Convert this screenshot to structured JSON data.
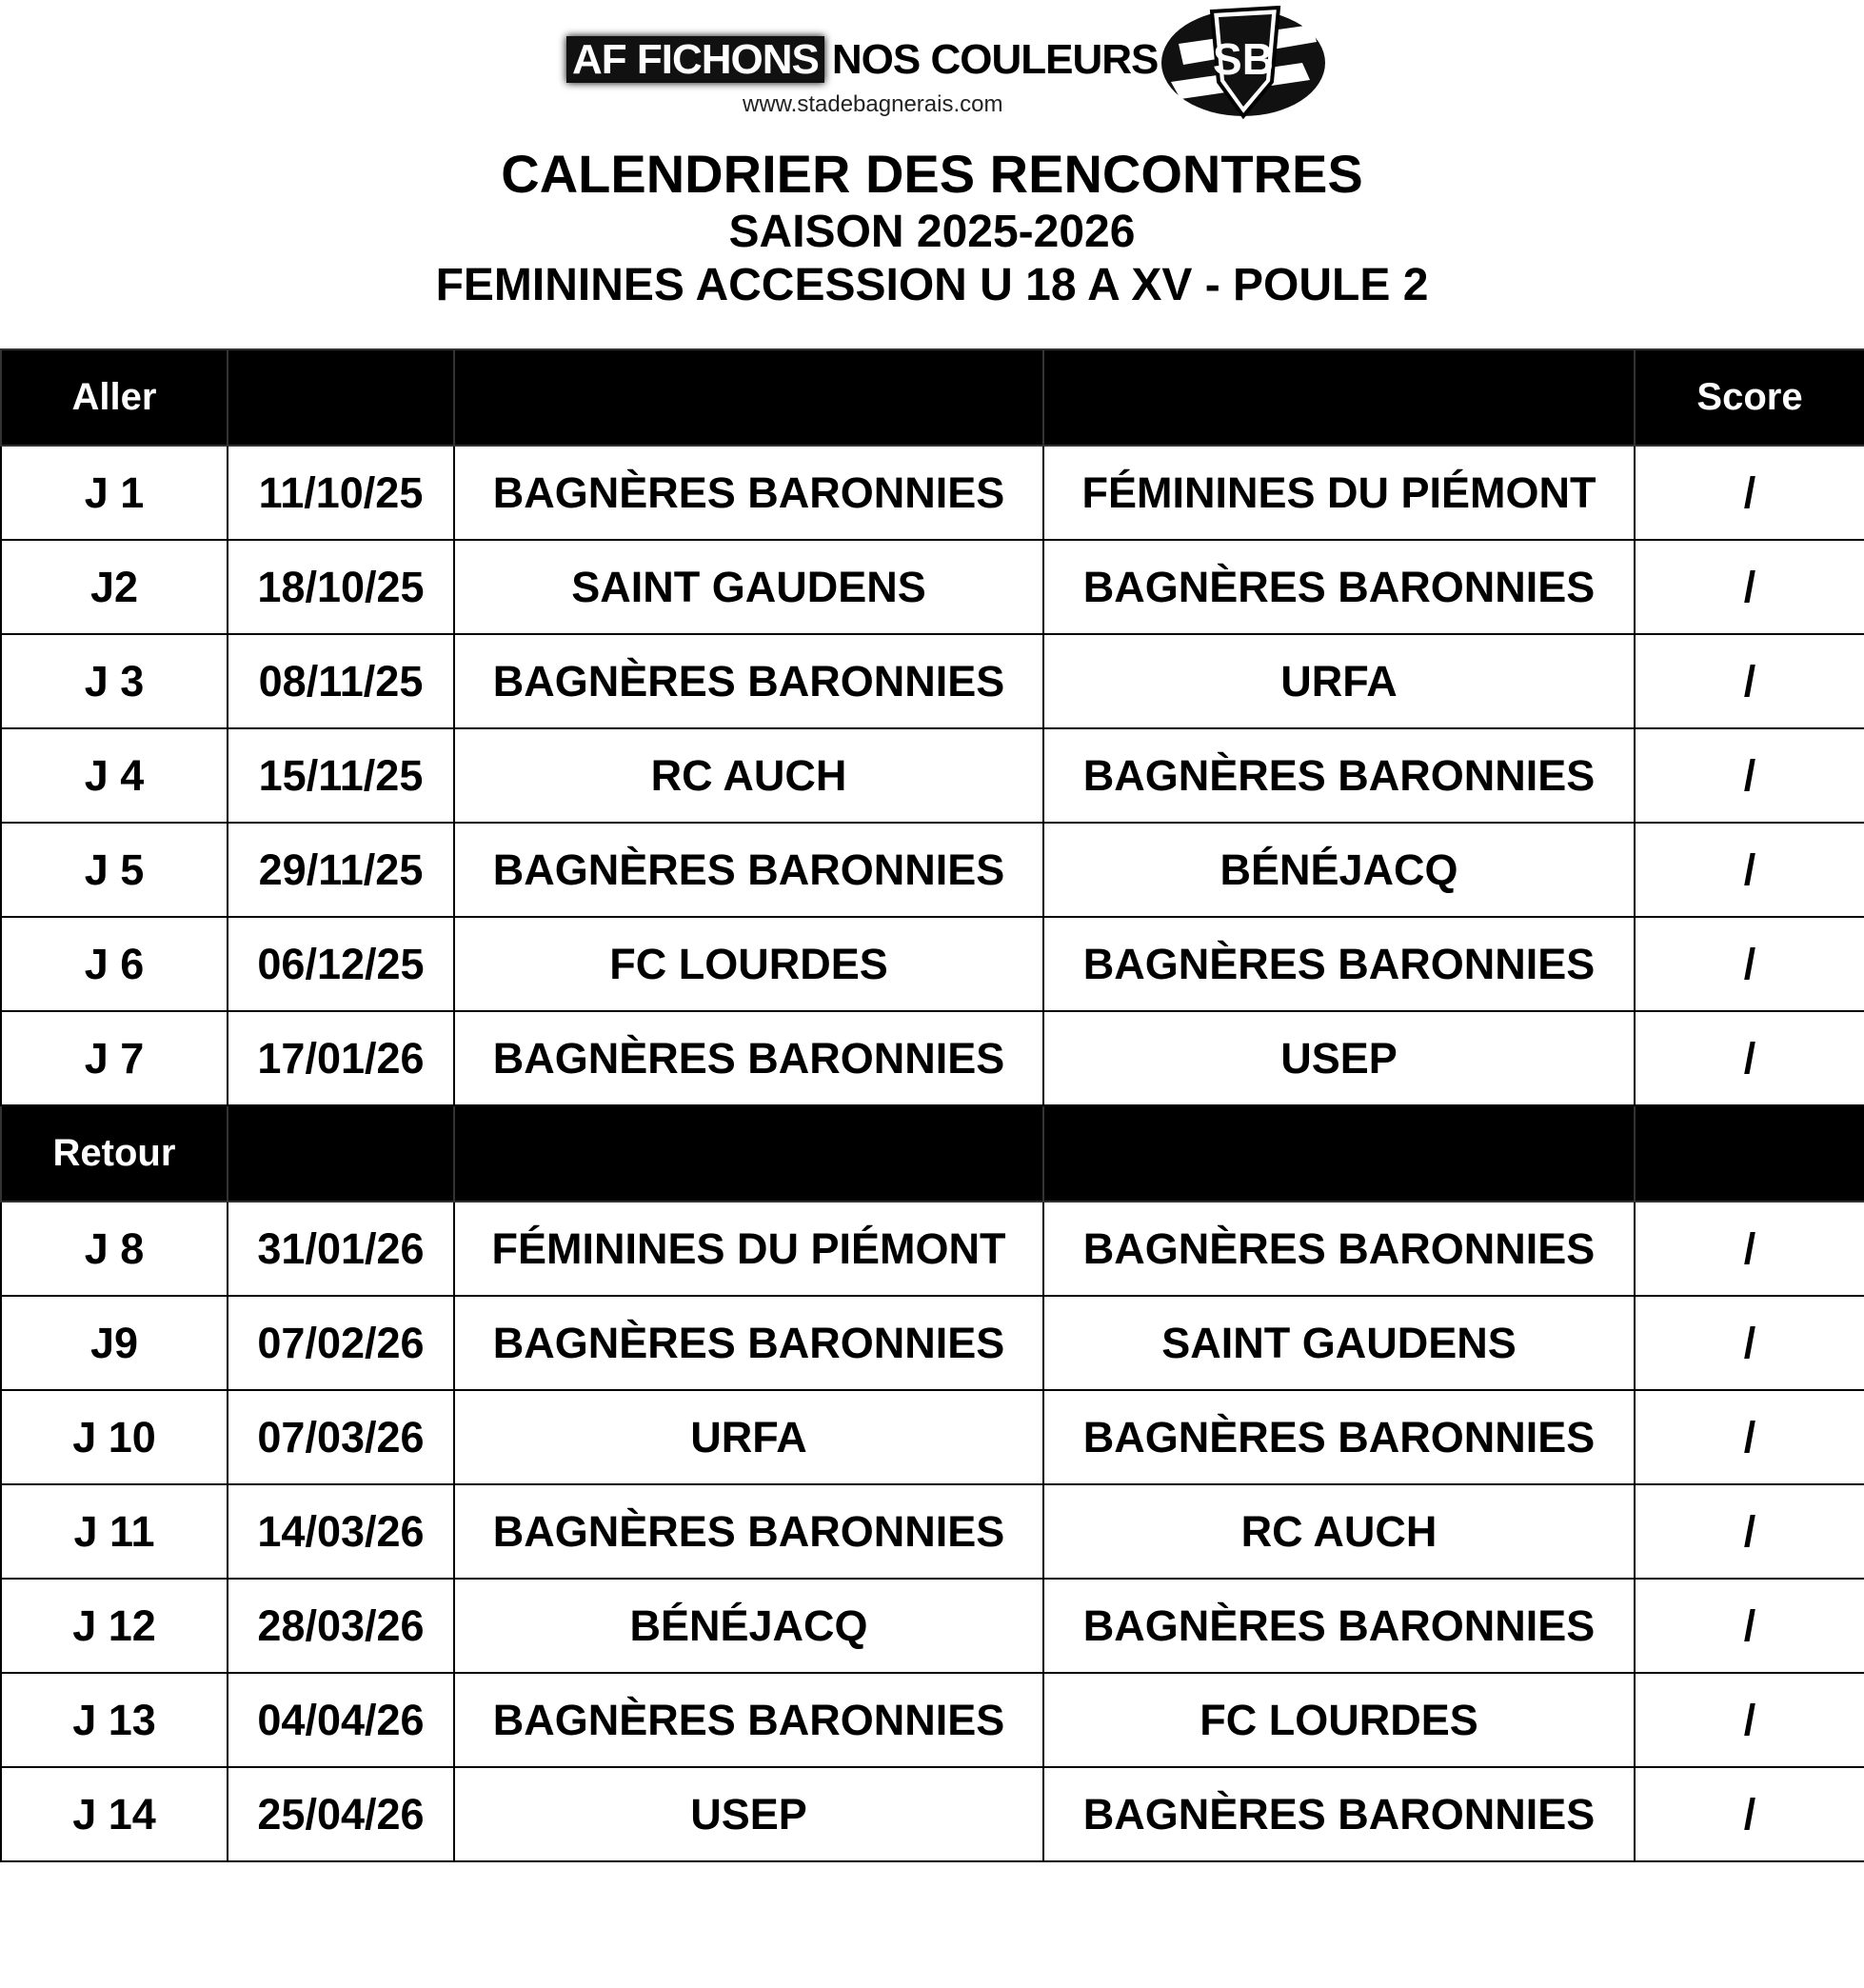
{
  "header": {
    "slogan_highlight": "AF FICHONS",
    "slogan_rest": "NOS COULEURS",
    "website": "www.stadebagnerais.com",
    "crest_letters": "SB",
    "title": "CALENDRIER DES RENCONTRES",
    "season": "SAISON 2025-2026",
    "competition": "FEMININES ACCESSION U 18 A XV - POULE 2"
  },
  "table": {
    "aller_label": "Aller",
    "retour_label": "Retour",
    "score_label": "Score",
    "aller": [
      {
        "day": "J 1",
        "date": "11/10/25",
        "home": "BAGNÈRES BARONNIES",
        "away": "FÉMININES DU PIÉMONT",
        "score": "/"
      },
      {
        "day": "J2",
        "date": "18/10/25",
        "home": "SAINT GAUDENS",
        "away": "BAGNÈRES BARONNIES",
        "score": "/"
      },
      {
        "day": "J 3",
        "date": "08/11/25",
        "home": "BAGNÈRES BARONNIES",
        "away": "URFA",
        "score": "/"
      },
      {
        "day": "J 4",
        "date": "15/11/25",
        "home": "RC AUCH",
        "away": "BAGNÈRES BARONNIES",
        "score": "/"
      },
      {
        "day": "J 5",
        "date": "29/11/25",
        "home": "BAGNÈRES BARONNIES",
        "away": "BÉNÉJACQ",
        "score": "/"
      },
      {
        "day": "J 6",
        "date": "06/12/25",
        "home": "FC LOURDES",
        "away": "BAGNÈRES BARONNIES",
        "score": "/"
      },
      {
        "day": "J 7",
        "date": "17/01/26",
        "home": "BAGNÈRES BARONNIES",
        "away": "USEP",
        "score": "/"
      }
    ],
    "retour": [
      {
        "day": "J 8",
        "date": "31/01/26",
        "home": "FÉMININES DU PIÉMONT",
        "away": "BAGNÈRES BARONNIES",
        "score": "/"
      },
      {
        "day": "J9",
        "date": "07/02/26",
        "home": "BAGNÈRES BARONNIES",
        "away": "SAINT GAUDENS",
        "score": "/"
      },
      {
        "day": "J 10",
        "date": "07/03/26",
        "home": "URFA",
        "away": "BAGNÈRES BARONNIES",
        "score": "/"
      },
      {
        "day": "J 11",
        "date": "14/03/26",
        "home": "BAGNÈRES BARONNIES",
        "away": "RC AUCH",
        "score": "/"
      },
      {
        "day": "J 12",
        "date": "28/03/26",
        "home": "BÉNÉJACQ",
        "away": "BAGNÈRES BARONNIES",
        "score": "/"
      },
      {
        "day": "J 13",
        "date": "04/04/26",
        "home": "BAGNÈRES BARONNIES",
        "away": "FC LOURDES",
        "score": "/"
      },
      {
        "day": "J 14",
        "date": "25/04/26",
        "home": "USEP",
        "away": "BAGNÈRES BARONNIES",
        "score": "/"
      }
    ]
  }
}
